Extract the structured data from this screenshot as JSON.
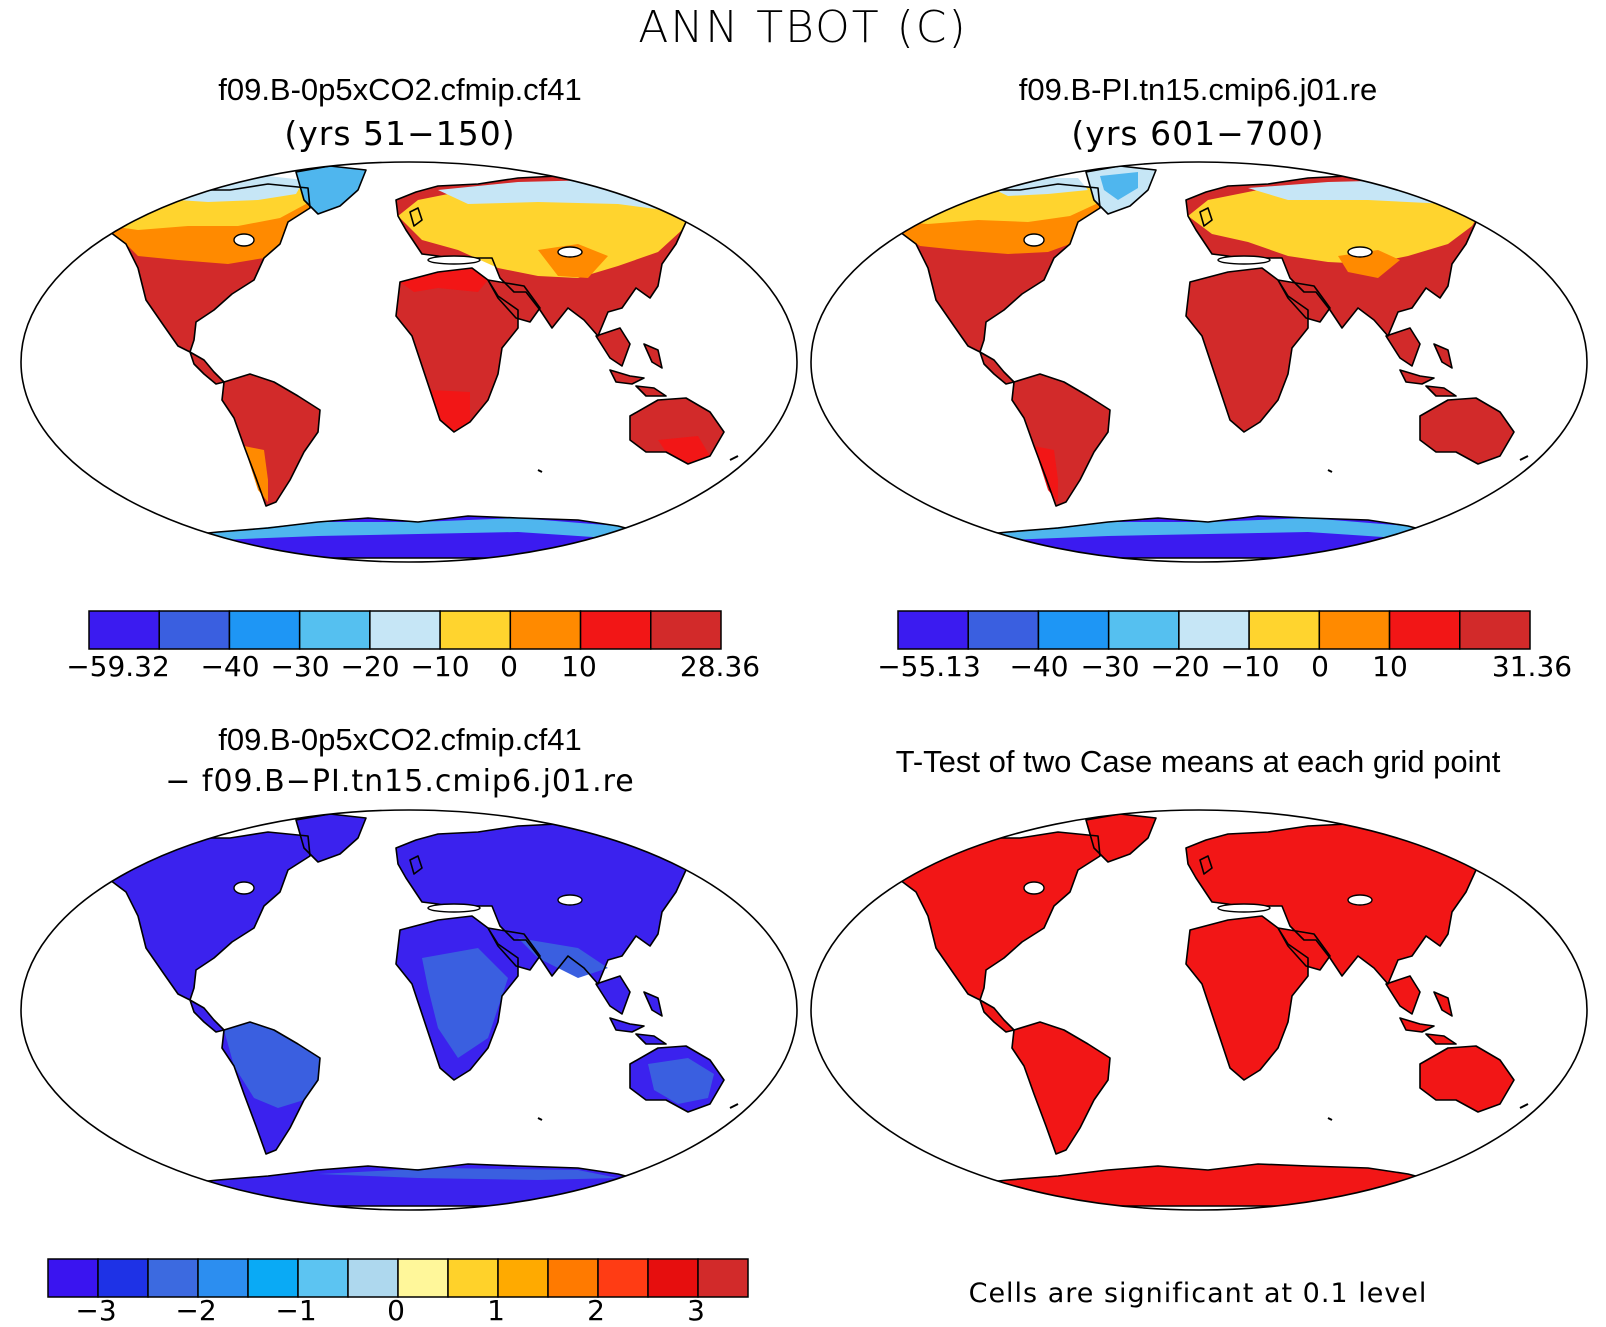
{
  "title": "ANN TBOT (C)",
  "panels": {
    "top_left": {
      "case": "f09.B-0p5xCO2.cfmip.cf41",
      "years": "(yrs 51−150)",
      "colorbar": {
        "colors": [
          "#3b1bf0",
          "#3a5fe0",
          "#1e96f5",
          "#55c0f0",
          "#c6e6f6",
          "#ffd42e",
          "#ff8a00",
          "#f21616",
          "#d22a2a"
        ],
        "tick_labels": [
          "−59.32",
          "−40",
          "−30",
          "−20",
          "−10",
          "0",
          "10",
          "28.36"
        ]
      }
    },
    "top_right": {
      "case": "f09.B-PI.tn15.cmip6.j01.re",
      "years": "(yrs 601−700)",
      "colorbar": {
        "colors": [
          "#3b1bf0",
          "#3a5fe0",
          "#1e96f5",
          "#55c0f0",
          "#c6e6f6",
          "#ffd42e",
          "#ff8a00",
          "#f21616",
          "#d22a2a"
        ],
        "tick_labels": [
          "−55.13",
          "−40",
          "−30",
          "−20",
          "−10",
          "0",
          "10",
          "31.36"
        ]
      }
    },
    "bottom_left": {
      "case": "f09.B-0p5xCO2.cfmip.cf41",
      "minus_case": "− f09.B−PI.tn15.cmip6.j01.re",
      "colorbar": {
        "colors": [
          "#3a14f0",
          "#1e32e6",
          "#3c6ae0",
          "#2c8ef0",
          "#0aaaf5",
          "#5cc4f2",
          "#aed8ee",
          "#fff79a",
          "#ffd22a",
          "#ffaa00",
          "#ff7a00",
          "#ff3c14",
          "#e60e0e",
          "#d22a2a"
        ],
        "tick_labels": [
          "−3",
          "−2",
          "−1",
          "0",
          "1",
          "2",
          "3"
        ]
      }
    },
    "bottom_right": {
      "title": "T-Test of two Case means at each grid point",
      "note": "Cells are significant at 0.1 level"
    }
  },
  "colors": {
    "warm_land": "#d22a2a",
    "red_land": "#f21616",
    "orange_land": "#ff8a00",
    "yellow_land": "#ffd42e",
    "pale_land": "#c6e6f6",
    "ice_blue": "#4fb6ee",
    "antarctic": "#3b1bf0",
    "diff_land": "#3b22ee",
    "diff_mid": "#3a5fe0",
    "ttest_land": "#f21616"
  }
}
